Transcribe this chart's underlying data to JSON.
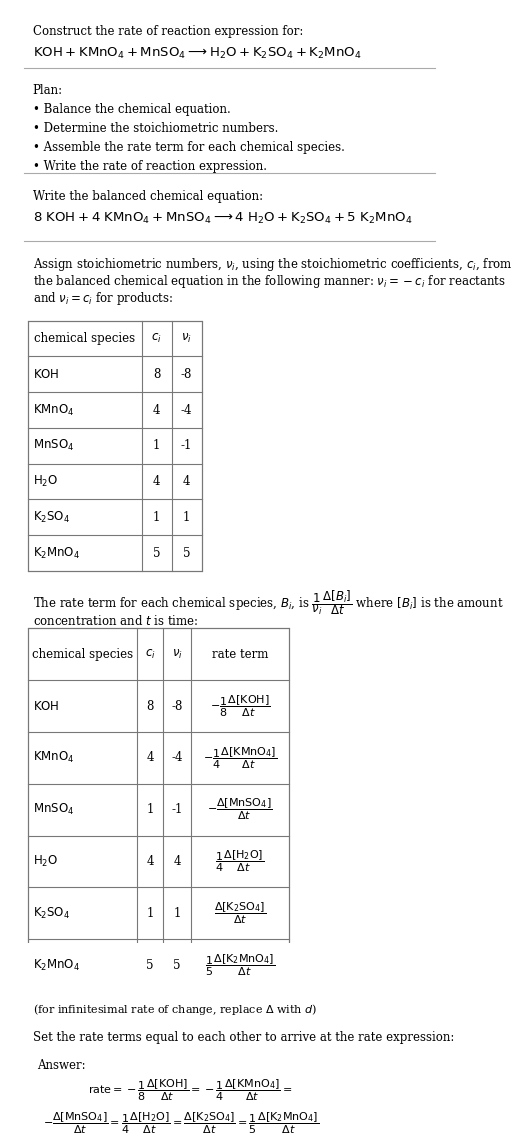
{
  "bg_color": "#ffffff",
  "text_color": "#000000",
  "font_family": "serif",
  "table1_rows": [
    [
      "KOH",
      "8",
      "-8"
    ],
    [
      "KMnO_4",
      "4",
      "-4"
    ],
    [
      "MnSO_4",
      "1",
      "-1"
    ],
    [
      "H_2O",
      "4",
      "4"
    ],
    [
      "K_2SO_4",
      "1",
      "1"
    ],
    [
      "K_2MnO_4",
      "5",
      "5"
    ]
  ],
  "table2_rows": [
    [
      "KOH",
      "8",
      "-8"
    ],
    [
      "KMnO_4",
      "4",
      "-4"
    ],
    [
      "MnSO_4",
      "1",
      "-1"
    ],
    [
      "H_2O",
      "4",
      "4"
    ],
    [
      "K_2SO_4",
      "1",
      "1"
    ],
    [
      "K_2MnO_4",
      "5",
      "5"
    ]
  ],
  "answer_bg": "#e8f4f8",
  "line_color": "#aaaaaa",
  "table_line_color": "#777777"
}
